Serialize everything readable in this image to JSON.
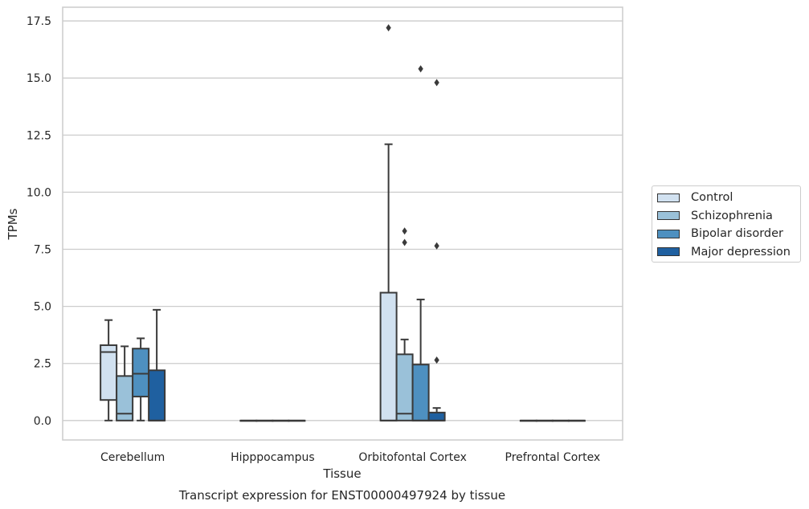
{
  "chart_data": {
    "type": "box",
    "title": "Transcript expression for ENST00000497924 by tissue",
    "xlabel": "Tissue",
    "ylabel": "TPMs",
    "ylim": [
      -0.85,
      18.1
    ],
    "yticks": [
      "0.0",
      "2.5",
      "5.0",
      "7.5",
      "10.0",
      "12.5",
      "15.0",
      "17.5"
    ],
    "ytick_values": [
      0,
      2.5,
      5,
      7.5,
      10,
      12.5,
      15,
      17.5
    ],
    "categories": [
      "Cerebellum",
      "Hipppocampus",
      "Orbitofontal Cortex",
      "Prefrontal Cortex"
    ],
    "grid": true,
    "legend_position": "right",
    "series": [
      {
        "name": "Control",
        "color": "#d1e1f0",
        "boxes": [
          {
            "whislo": 0,
            "q1": 0.9,
            "median": 3.0,
            "q3": 3.3,
            "whishi": 4.4,
            "fliers": []
          },
          {
            "whislo": 0,
            "q1": 0,
            "median": 0,
            "q3": 0,
            "whishi": 0,
            "fliers": []
          },
          {
            "whislo": 0,
            "q1": 0,
            "median": 0,
            "q3": 5.6,
            "whishi": 12.1,
            "fliers": [
              17.2
            ]
          },
          {
            "whislo": 0,
            "q1": 0,
            "median": 0,
            "q3": 0,
            "whishi": 0,
            "fliers": []
          }
        ]
      },
      {
        "name": "Schizophrenia",
        "color": "#9ac1d9",
        "boxes": [
          {
            "whislo": 0,
            "q1": 0,
            "median": 0.3,
            "q3": 1.95,
            "whishi": 3.25,
            "fliers": []
          },
          {
            "whislo": 0,
            "q1": 0,
            "median": 0,
            "q3": 0,
            "whishi": 0,
            "fliers": []
          },
          {
            "whislo": 0,
            "q1": 0,
            "median": 0.3,
            "q3": 2.9,
            "whishi": 3.55,
            "fliers": [
              7.8,
              8.3
            ]
          },
          {
            "whislo": 0,
            "q1": 0,
            "median": 0,
            "q3": 0,
            "whishi": 0,
            "fliers": []
          }
        ]
      },
      {
        "name": "Bipolar disorder",
        "color": "#4e90c0",
        "boxes": [
          {
            "whislo": 0,
            "q1": 1.05,
            "median": 2.05,
            "q3": 3.15,
            "whishi": 3.6,
            "fliers": []
          },
          {
            "whislo": 0,
            "q1": 0,
            "median": 0,
            "q3": 0,
            "whishi": 0,
            "fliers": []
          },
          {
            "whislo": 0,
            "q1": 0,
            "median": 0,
            "q3": 2.45,
            "whishi": 5.3,
            "fliers": [
              15.4
            ]
          },
          {
            "whislo": 0,
            "q1": 0,
            "median": 0,
            "q3": 0,
            "whishi": 0,
            "fliers": []
          }
        ]
      },
      {
        "name": "Major depression",
        "color": "#1f60a0",
        "boxes": [
          {
            "whislo": 0,
            "q1": 0,
            "median": 0,
            "q3": 2.2,
            "whishi": 4.85,
            "fliers": []
          },
          {
            "whislo": 0,
            "q1": 0,
            "median": 0,
            "q3": 0,
            "whishi": 0,
            "fliers": []
          },
          {
            "whislo": 0,
            "q1": 0,
            "median": 0,
            "q3": 0.35,
            "whishi": 0.55,
            "fliers": [
              2.65,
              7.65,
              14.8
            ]
          },
          {
            "whislo": 0,
            "q1": 0,
            "median": 0,
            "q3": 0,
            "whishi": 0,
            "fliers": []
          }
        ]
      }
    ]
  }
}
